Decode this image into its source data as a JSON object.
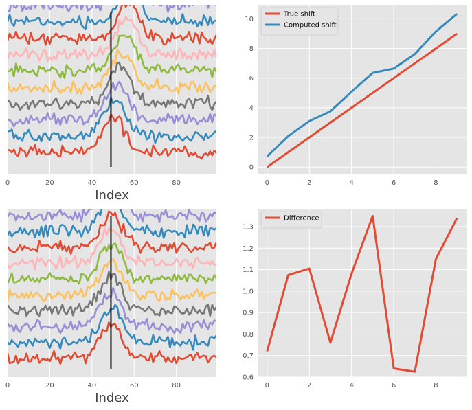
{
  "chart_data": [
    {
      "id": "top-left",
      "type": "line",
      "title": "",
      "xlabel": "Index",
      "ylabel": "",
      "xlim": [
        0,
        99
      ],
      "ylim": [
        -4,
        100
      ],
      "xticks": [
        0,
        20,
        40,
        60,
        80
      ],
      "yticks_visible": false,
      "grid": true,
      "vline_x": 49,
      "n_points": 100,
      "series_colors": [
        "#E24A33",
        "#348ABD",
        "#988ED5",
        "#777777",
        "#FBC15E",
        "#8EBA42",
        "#FFB5B8",
        "#E24A33",
        "#348ABD",
        "#988ED5"
      ],
      "offsets": [
        10,
        20,
        30,
        40,
        50,
        60,
        70,
        80,
        90,
        100
      ],
      "peak_positions": [
        50,
        51,
        52,
        53,
        54,
        55,
        56,
        57,
        58,
        59
      ],
      "peak_height": 22,
      "peak_width": 5,
      "noise_amplitude": 3
    },
    {
      "id": "top-right",
      "type": "line",
      "title": "",
      "xlabel": "",
      "ylabel": "",
      "xlim": [
        -0.45,
        9.45
      ],
      "ylim": [
        -0.5,
        10.9
      ],
      "xticks": [
        0,
        2,
        4,
        6,
        8
      ],
      "yticks": [
        0,
        2,
        4,
        6,
        8,
        10
      ],
      "grid": true,
      "legend_position": "upper-left",
      "x": [
        0,
        1,
        2,
        3,
        4,
        5,
        6,
        7,
        8,
        9
      ],
      "series": [
        {
          "name": "True shift",
          "color": "#E24A33",
          "values": [
            0,
            1,
            2,
            3,
            4,
            5,
            6,
            7,
            8,
            9
          ]
        },
        {
          "name": "Computed shift",
          "color": "#348ABD",
          "values": [
            0.72,
            2.08,
            3.1,
            3.76,
            5.08,
            6.35,
            6.64,
            7.63,
            9.15,
            10.34
          ]
        }
      ]
    },
    {
      "id": "bottom-left",
      "type": "line",
      "title": "",
      "xlabel": "Index",
      "ylabel": "",
      "xlim": [
        0,
        99
      ],
      "ylim": [
        -2,
        104
      ],
      "xticks": [
        0,
        20,
        40,
        60,
        80
      ],
      "yticks_visible": false,
      "grid": true,
      "vline_x": 49,
      "n_points": 100,
      "series_colors": [
        "#E24A33",
        "#348ABD",
        "#988ED5",
        "#777777",
        "#FBC15E",
        "#8EBA42",
        "#FFB5B8",
        "#E24A33",
        "#348ABD",
        "#988ED5"
      ],
      "offsets": [
        10,
        20,
        30,
        40,
        50,
        60,
        70,
        80,
        90,
        100
      ],
      "peak_positions": [
        49,
        49,
        49,
        49,
        49,
        49,
        49,
        49,
        49,
        49
      ],
      "peak_height": 22,
      "peak_width": 5,
      "noise_amplitude": 3
    },
    {
      "id": "bottom-right",
      "type": "line",
      "title": "",
      "xlabel": "",
      "ylabel": "",
      "xlim": [
        -0.45,
        9.45
      ],
      "ylim": [
        0.6,
        1.38
      ],
      "xticks": [
        0,
        2,
        4,
        6,
        8
      ],
      "yticks": [
        0.6,
        0.7,
        0.8,
        0.9,
        1.0,
        1.1,
        1.2,
        1.3
      ],
      "ytick_labels": [
        "0.6",
        "0.7",
        "0.8",
        "0.9",
        "1.0",
        "1.1",
        "1.2",
        "1.3"
      ],
      "grid": true,
      "legend_position": "upper-left",
      "x": [
        0,
        1,
        2,
        3,
        4,
        5,
        6,
        7,
        8,
        9
      ],
      "series": [
        {
          "name": "Difference",
          "color": "#E24A33",
          "values": [
            0.72,
            1.075,
            1.105,
            0.76,
            1.08,
            1.35,
            0.64,
            0.625,
            1.15,
            1.34
          ]
        }
      ]
    }
  ]
}
